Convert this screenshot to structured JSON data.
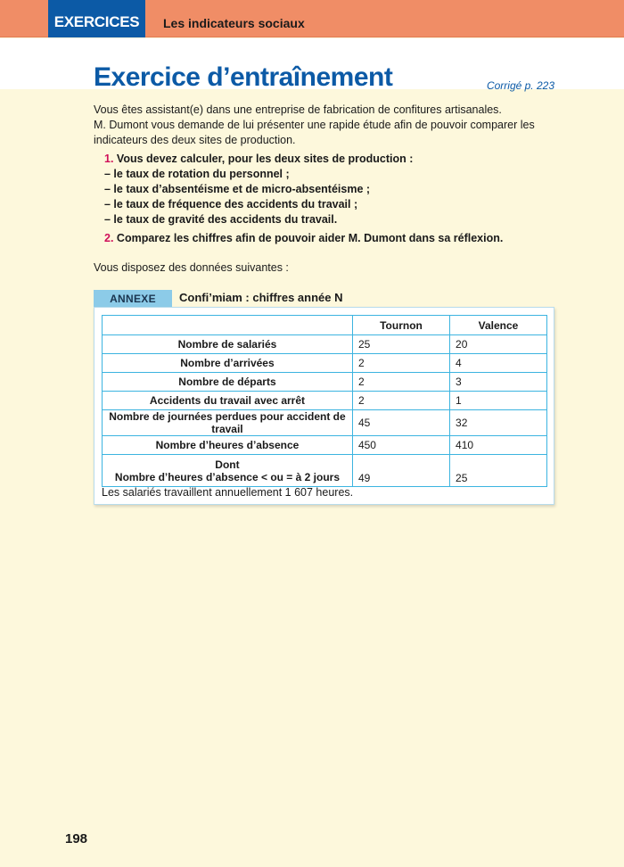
{
  "header": {
    "tag": "EXERCICES",
    "section": "Les indicateurs sociaux"
  },
  "title": "Exercice d’entraînement",
  "corrige": "Corrigé p. 223",
  "intro": [
    "Vous êtes assistant(e) dans une entreprise de fabrication de confitures artisanales.",
    "M. Dumont vous demande de lui présenter une rapide étude afin de pouvoir comparer les indicateurs des deux sites de production."
  ],
  "questions": [
    {
      "num": "1.",
      "lines": [
        "Vous devez calculer, pour les deux sites de production :",
        "– le taux de rotation du personnel ;",
        "– le taux d’absentéisme et de micro-absentéisme ;",
        "– le taux de fréquence des accidents du travail ;",
        "– le taux de gravité des accidents du travail."
      ]
    },
    {
      "num": "2.",
      "lines": [
        "Comparez les chiffres afin de pouvoir aider M. Dumont dans sa réflexion."
      ]
    }
  ],
  "dispose": "Vous disposez des données suivantes :",
  "annexe": {
    "tag": "Annexe",
    "title": "Confi’miam : chiffres année N",
    "columns": [
      "",
      "Tournon",
      "Valence"
    ],
    "rows": [
      [
        "Nombre de salariés",
        "25",
        "20"
      ],
      [
        "Nombre d’arrivées",
        "2",
        "4"
      ],
      [
        "Nombre de départs",
        "2",
        "3"
      ],
      [
        "Accidents du travail avec arrêt",
        "2",
        "1"
      ],
      [
        "Nombre de journées perdues pour accident de travail",
        "45",
        "32"
      ],
      [
        "Nombre d’heures d’absence",
        "450",
        "410"
      ]
    ],
    "last_row": {
      "label1": "Dont",
      "label2": "Nombre d’heures d’absence < ou = à 2 jours",
      "tournon": "49",
      "valence": "25"
    },
    "note": "Les salariés travaillent annuellement 1 607 heures."
  },
  "page_number": "198"
}
